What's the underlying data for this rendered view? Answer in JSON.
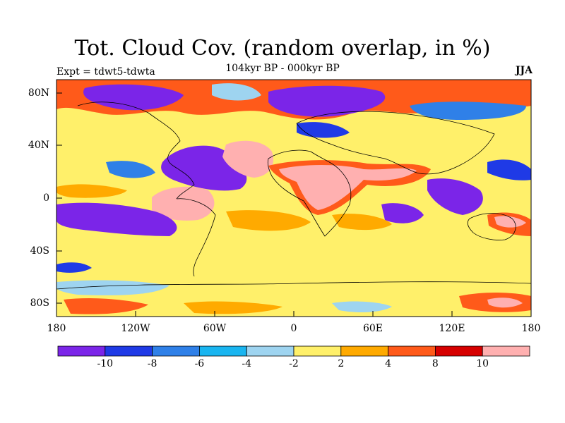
{
  "title": "Tot. Cloud Cov. (random overlap, in %)",
  "subtitle": "104kyr BP - 000kyr BP",
  "experiment": "Expt = tdwt5-tdwta",
  "season": "JJA",
  "lat_ticks": [
    "80N",
    "40N",
    "0",
    "40S",
    "80S"
  ],
  "lon_ticks": [
    "180",
    "120W",
    "60W",
    "0",
    "60E",
    "120E",
    "180"
  ],
  "colorbar": {
    "labels": [
      "-10",
      "-8",
      "-6",
      "-4",
      "-2",
      "2",
      "4",
      "8",
      "10"
    ],
    "colors": [
      "#7b25e8",
      "#1f3ae6",
      "#2f80e8",
      "#19b5f0",
      "#9ed4f0",
      "#fff06a",
      "#ffaa00",
      "#ff5a1a",
      "#d60000",
      "#ffb0b0"
    ]
  }
}
